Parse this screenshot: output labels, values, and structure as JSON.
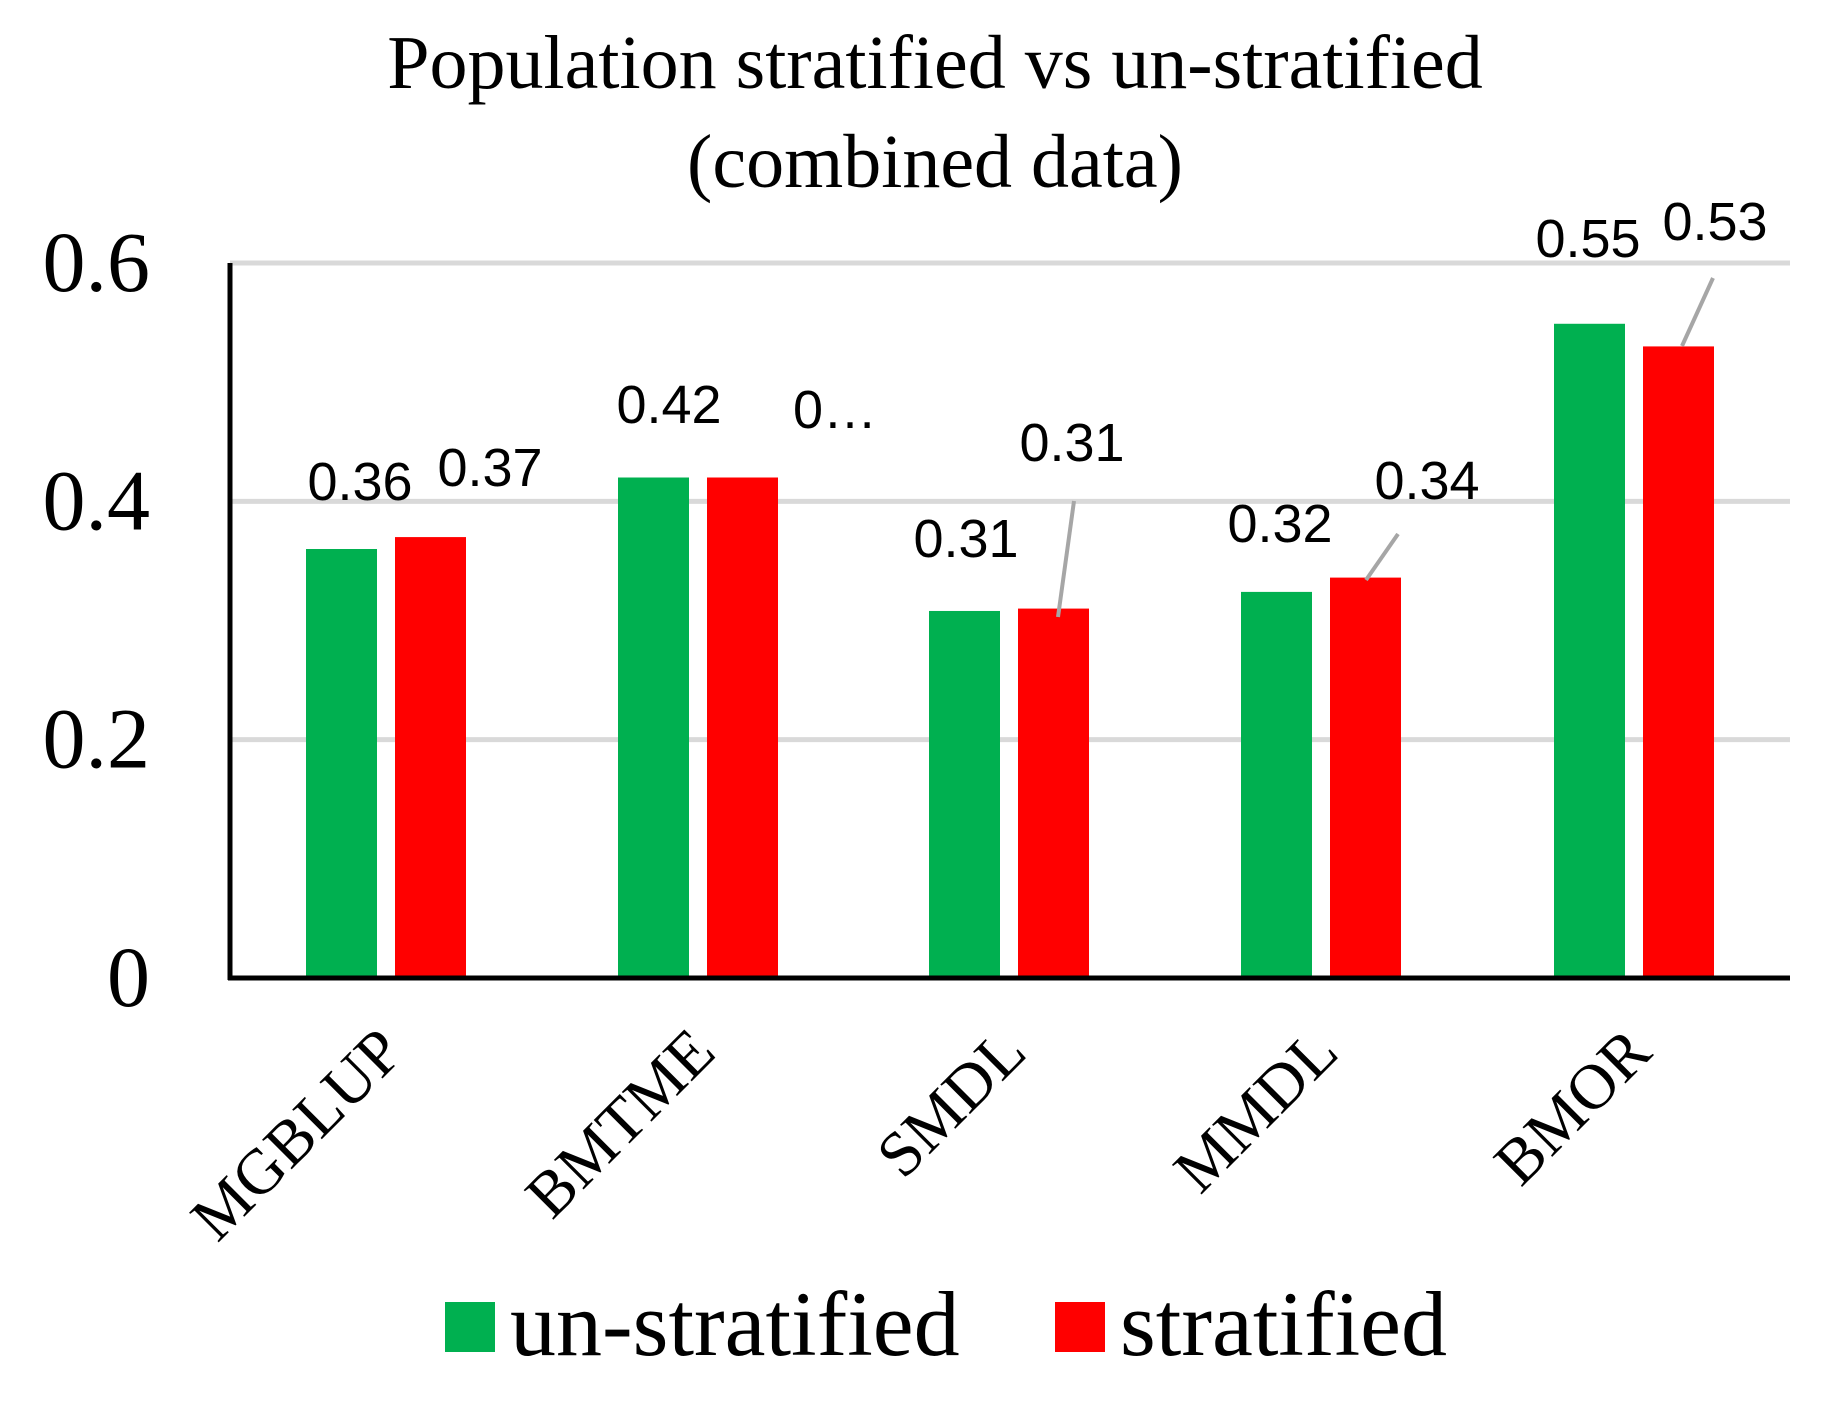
{
  "chart_data": {
    "type": "bar",
    "title_lines": [
      "Population stratified vs un-stratified",
      "(combined data)"
    ],
    "xlabel": "",
    "ylabel": "",
    "ylim": [
      0,
      0.6
    ],
    "y_ticks": [
      0,
      0.2,
      0.4,
      0.6
    ],
    "y_tick_labels": [
      "0",
      "0.2",
      "0.4",
      "0.6"
    ],
    "grid": true,
    "legend_position": "bottom",
    "categories": [
      "MGBLUP",
      "BMTME",
      "SMDL",
      "MMDL",
      "BMOR"
    ],
    "series": [
      {
        "name": "un-stratified",
        "color": "#00b050",
        "values": [
          0.36,
          0.42,
          0.308,
          0.324,
          0.549
        ],
        "data_labels": [
          "0.36",
          "0.42",
          "0.31",
          "0.32",
          "0.55"
        ]
      },
      {
        "name": "stratified",
        "color": "#ff0000",
        "values": [
          0.37,
          0.42,
          0.31,
          0.336,
          0.53
        ],
        "data_labels": [
          "0.37",
          "0…",
          "0.31",
          "0.34",
          "0.53"
        ]
      }
    ]
  }
}
